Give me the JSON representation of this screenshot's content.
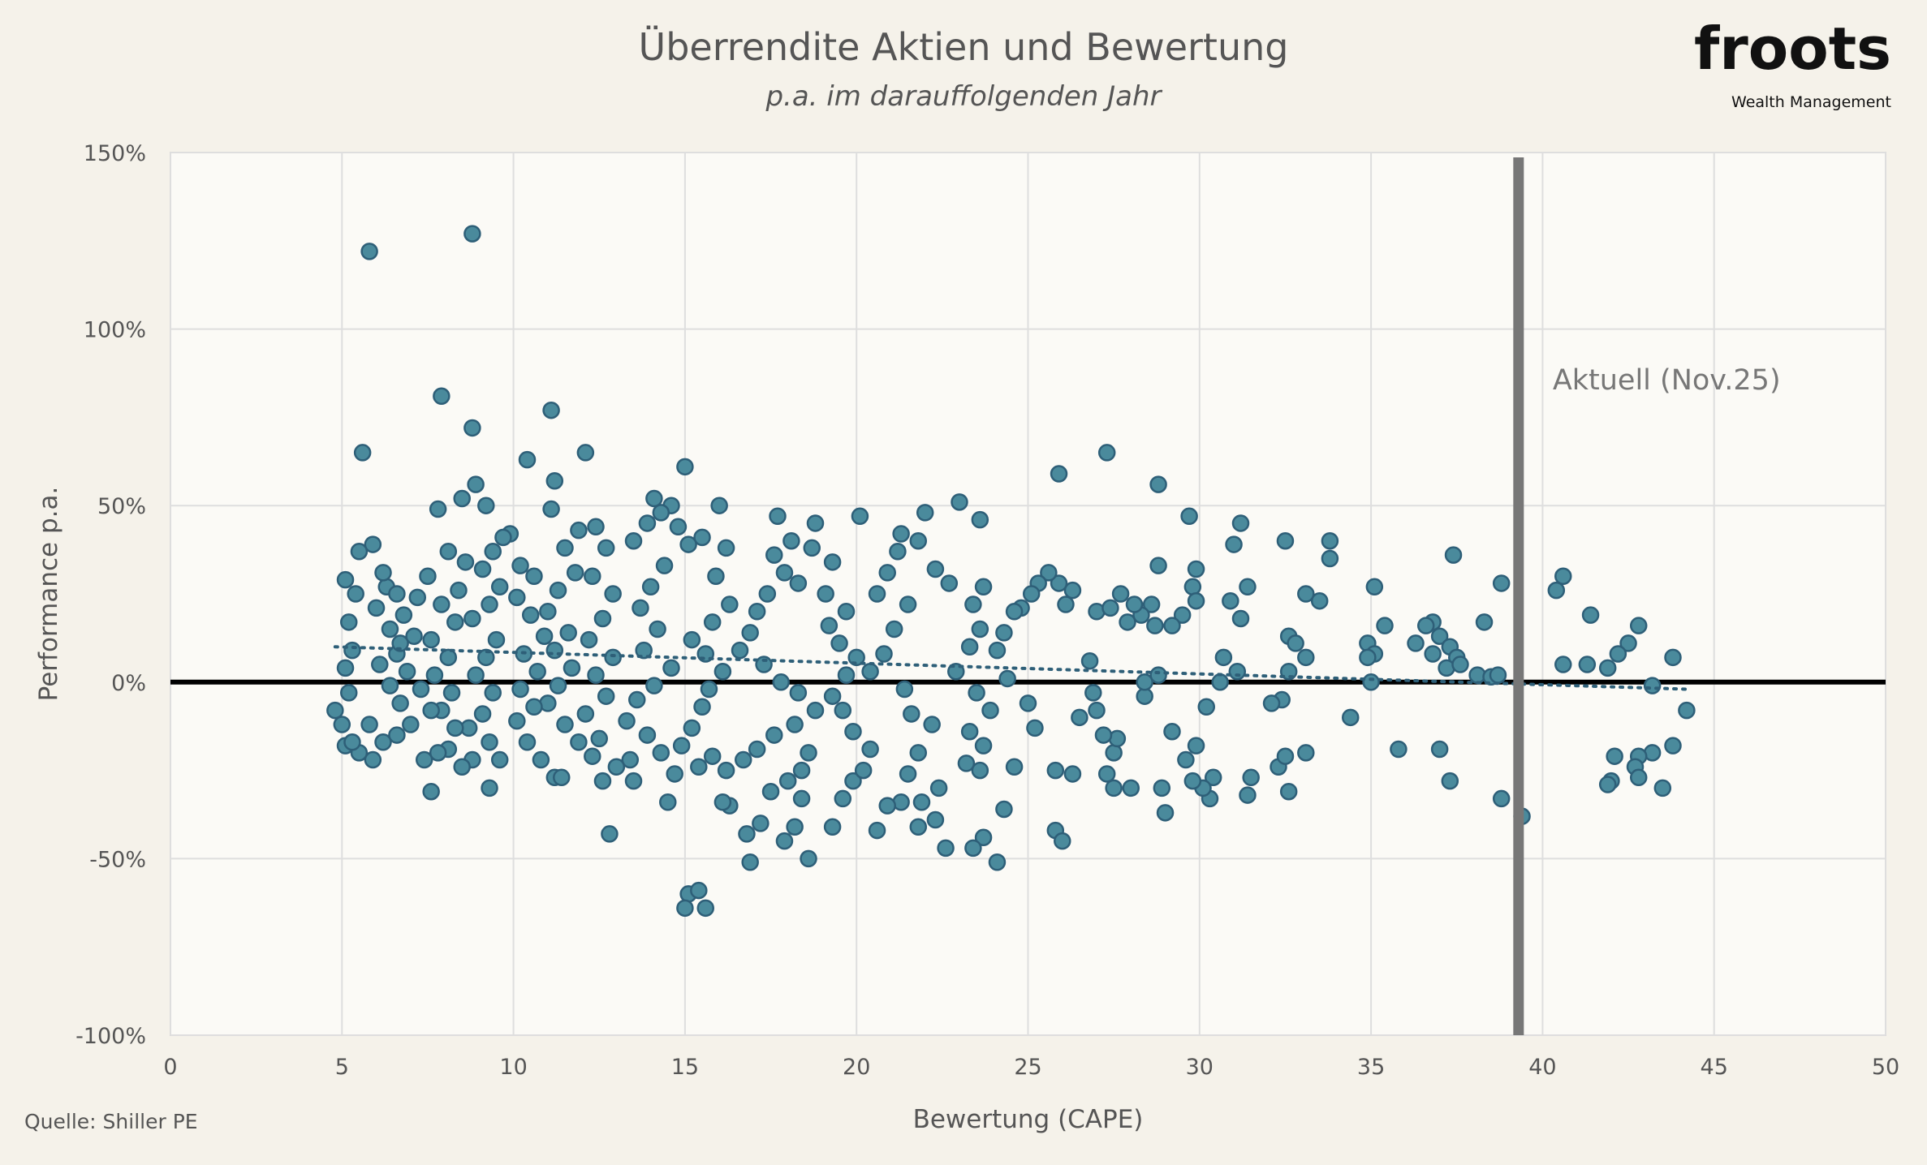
{
  "title": "Überrendite Aktien und Bewertung",
  "subtitle": "p.a. im darauffolgenden Jahr",
  "logo": {
    "name": "froots",
    "tagline": "Wealth Management"
  },
  "source": "Quelle: Shiller PE",
  "chart_data": {
    "type": "scatter",
    "xlabel": "Bewertung (CAPE)",
    "ylabel": "Performance p.a.",
    "xlim": [
      0,
      50
    ],
    "ylim": [
      -100,
      150
    ],
    "x_ticks": [
      "0",
      "5",
      "10",
      "15",
      "20",
      "25",
      "30",
      "35",
      "40",
      "45",
      "50"
    ],
    "y_ticks": [
      "150%",
      "100%",
      "50%",
      "0%",
      "-50%",
      "-100%"
    ],
    "grid": true,
    "colors": {
      "point": "#4a8a9c",
      "point_edge": "#2e5f78",
      "zero_line": "#000000",
      "marker_line": "#777777",
      "trend": "#2e5f78",
      "background": "#f5f2ea",
      "plot_bg": "#fbfaf6"
    },
    "marker": {
      "x": 39.3,
      "label": "Aktuell (Nov.25)"
    },
    "trendline": {
      "style": "dotted",
      "from": [
        4.8,
        10
      ],
      "to": [
        44.2,
        -2
      ]
    },
    "points": [
      [
        5.8,
        122
      ],
      [
        8.8,
        127
      ],
      [
        7.9,
        81
      ],
      [
        11.1,
        77
      ],
      [
        8.8,
        72
      ],
      [
        5.6,
        65
      ],
      [
        12.1,
        65
      ],
      [
        27.3,
        65
      ],
      [
        10.4,
        63
      ],
      [
        15,
        61
      ],
      [
        25.9,
        59
      ],
      [
        28.8,
        56
      ],
      [
        11.2,
        57
      ],
      [
        8.9,
        56
      ],
      [
        8.5,
        52
      ],
      [
        14.1,
        52
      ],
      [
        23,
        51
      ],
      [
        9.2,
        50
      ],
      [
        16,
        50
      ],
      [
        14.6,
        50
      ],
      [
        11.1,
        49
      ],
      [
        7.8,
        49
      ],
      [
        22,
        48
      ],
      [
        29.7,
        47
      ],
      [
        17.7,
        47
      ],
      [
        20.1,
        47
      ],
      [
        23.6,
        46
      ],
      [
        31.2,
        45
      ],
      [
        18.8,
        45
      ],
      [
        5.9,
        39
      ],
      [
        5.5,
        37
      ],
      [
        32.5,
        40
      ],
      [
        33.8,
        40
      ],
      [
        31,
        39
      ],
      [
        37.4,
        36
      ],
      [
        33.8,
        35
      ],
      [
        35.1,
        27
      ],
      [
        38.8,
        28
      ],
      [
        40.6,
        30
      ],
      [
        40.4,
        26
      ],
      [
        41.4,
        19
      ],
      [
        42.8,
        16
      ],
      [
        42.5,
        11
      ],
      [
        43.8,
        7
      ],
      [
        42.2,
        8
      ],
      [
        41.9,
        4
      ],
      [
        40.6,
        5
      ],
      [
        41.3,
        5
      ],
      [
        43.2,
        -1
      ],
      [
        44.2,
        -8
      ],
      [
        43.8,
        -18
      ],
      [
        43.2,
        -20
      ],
      [
        42.1,
        -21
      ],
      [
        42.8,
        -21
      ],
      [
        42.7,
        -24
      ],
      [
        42.8,
        -27
      ],
      [
        42,
        -28
      ],
      [
        41.9,
        -29
      ],
      [
        43.5,
        -30
      ],
      [
        39.4,
        -38
      ],
      [
        38.8,
        -33
      ],
      [
        37.3,
        -28
      ],
      [
        37,
        -19
      ],
      [
        35.8,
        -19
      ],
      [
        36.8,
        17
      ],
      [
        36.6,
        16
      ],
      [
        37,
        13
      ],
      [
        37.3,
        10
      ],
      [
        36.3,
        11
      ],
      [
        37.5,
        7
      ],
      [
        37.2,
        4
      ],
      [
        38.1,
        2
      ],
      [
        38.5,
        1.5
      ],
      [
        38.7,
        2
      ],
      [
        38.3,
        17
      ],
      [
        36.8,
        8
      ],
      [
        37.6,
        5
      ],
      [
        35.4,
        16
      ],
      [
        34.9,
        11
      ],
      [
        35.1,
        8
      ],
      [
        34.9,
        7
      ],
      [
        35,
        0
      ],
      [
        34.4,
        -10
      ],
      [
        33.5,
        23
      ],
      [
        33.1,
        25
      ],
      [
        32.6,
        13
      ],
      [
        32.8,
        11
      ],
      [
        32.6,
        3
      ],
      [
        33.1,
        7
      ],
      [
        32.4,
        -5
      ],
      [
        32.1,
        -6
      ],
      [
        33.1,
        -20
      ],
      [
        32.6,
        -31
      ],
      [
        31.4,
        -32
      ],
      [
        31.5,
        -27
      ],
      [
        32.3,
        -24
      ],
      [
        32.5,
        -21
      ],
      [
        31.2,
        18
      ],
      [
        31.4,
        27
      ],
      [
        30.9,
        23
      ],
      [
        30.7,
        7
      ],
      [
        31.1,
        3
      ],
      [
        30.6,
        0
      ],
      [
        30.2,
        -7
      ],
      [
        30.4,
        -27
      ],
      [
        30.3,
        -33
      ],
      [
        30.1,
        -30
      ],
      [
        29.8,
        -28
      ],
      [
        29.9,
        -18
      ],
      [
        29,
        -37
      ],
      [
        28.9,
        -30
      ],
      [
        29.2,
        -14
      ],
      [
        29.6,
        -22
      ],
      [
        29.9,
        32
      ],
      [
        29.8,
        27
      ],
      [
        29.5,
        19
      ],
      [
        29.9,
        23
      ],
      [
        29.2,
        16
      ],
      [
        28.8,
        33
      ],
      [
        28.6,
        22
      ],
      [
        28.3,
        19
      ],
      [
        27.9,
        17
      ],
      [
        28.1,
        22
      ],
      [
        28.7,
        16
      ],
      [
        28.8,
        2
      ],
      [
        28.4,
        -4
      ],
      [
        28.4,
        0
      ],
      [
        28,
        -30
      ],
      [
        27.5,
        -30
      ],
      [
        27.3,
        -26
      ],
      [
        27.5,
        -20
      ],
      [
        27.6,
        -16
      ],
      [
        27.2,
        -15
      ],
      [
        27,
        -8
      ],
      [
        26.9,
        -3
      ],
      [
        26.5,
        -10
      ],
      [
        26.8,
        6
      ],
      [
        27,
        20
      ],
      [
        27.4,
        21
      ],
      [
        27.7,
        25
      ],
      [
        26.3,
        26
      ],
      [
        26.1,
        22
      ],
      [
        25.9,
        28
      ],
      [
        25.6,
        31
      ],
      [
        25.3,
        28
      ],
      [
        25.1,
        25
      ],
      [
        24.8,
        21
      ],
      [
        24.6,
        20
      ],
      [
        24.3,
        14
      ],
      [
        24.1,
        9
      ],
      [
        24.4,
        1
      ],
      [
        25,
        -6
      ],
      [
        25.2,
        -13
      ],
      [
        25.8,
        -25
      ],
      [
        26.3,
        -26
      ],
      [
        25.8,
        -42
      ],
      [
        26,
        -45
      ],
      [
        24.3,
        -36
      ],
      [
        24.6,
        -24
      ],
      [
        24.1,
        -51
      ],
      [
        23.7,
        -44
      ],
      [
        23.4,
        -47
      ],
      [
        22.6,
        -47
      ],
      [
        23.6,
        -25
      ],
      [
        23.2,
        -23
      ],
      [
        23.7,
        -18
      ],
      [
        23.3,
        -14
      ],
      [
        23.9,
        -8
      ],
      [
        23.5,
        -3
      ],
      [
        22.9,
        3
      ],
      [
        23.3,
        10
      ],
      [
        23.6,
        15
      ],
      [
        23.4,
        22
      ],
      [
        23.7,
        27
      ],
      [
        22.7,
        28
      ],
      [
        22.3,
        32
      ],
      [
        21.8,
        40
      ],
      [
        21.3,
        42
      ],
      [
        21.2,
        37
      ],
      [
        20.9,
        31
      ],
      [
        20.6,
        25
      ],
      [
        21.5,
        22
      ],
      [
        21.1,
        15
      ],
      [
        20.8,
        8
      ],
      [
        20.4,
        3
      ],
      [
        21.4,
        -2
      ],
      [
        21.6,
        -9
      ],
      [
        22.2,
        -12
      ],
      [
        21.8,
        -20
      ],
      [
        21.5,
        -26
      ],
      [
        22.4,
        -30
      ],
      [
        21.9,
        -34
      ],
      [
        21.3,
        -34
      ],
      [
        20.9,
        -35
      ],
      [
        22.3,
        -39
      ],
      [
        21.8,
        -41
      ],
      [
        20.6,
        -42
      ],
      [
        19.3,
        -41
      ],
      [
        19.6,
        -33
      ],
      [
        19.9,
        -28
      ],
      [
        20.2,
        -25
      ],
      [
        20.4,
        -19
      ],
      [
        19.9,
        -14
      ],
      [
        19.6,
        -8
      ],
      [
        19.3,
        -4
      ],
      [
        19.7,
        2
      ],
      [
        20,
        7
      ],
      [
        19.5,
        11
      ],
      [
        19.2,
        16
      ],
      [
        19.7,
        20
      ],
      [
        19.1,
        25
      ],
      [
        19.3,
        34
      ],
      [
        18.7,
        38
      ],
      [
        18.1,
        40
      ],
      [
        17.6,
        36
      ],
      [
        17.9,
        31
      ],
      [
        18.3,
        28
      ],
      [
        17.4,
        25
      ],
      [
        17.1,
        20
      ],
      [
        16.9,
        14
      ],
      [
        16.6,
        9
      ],
      [
        17.3,
        5
      ],
      [
        17.8,
        0
      ],
      [
        18.3,
        -3
      ],
      [
        18.8,
        -8
      ],
      [
        18.2,
        -12
      ],
      [
        17.6,
        -15
      ],
      [
        17.1,
        -19
      ],
      [
        16.7,
        -22
      ],
      [
        18.6,
        -20
      ],
      [
        18.4,
        -25
      ],
      [
        18,
        -28
      ],
      [
        18.4,
        -33
      ],
      [
        17.5,
        -31
      ],
      [
        18.2,
        -41
      ],
      [
        17.9,
        -45
      ],
      [
        18.6,
        -50
      ],
      [
        16.9,
        -51
      ],
      [
        16.8,
        -43
      ],
      [
        17.2,
        -40
      ],
      [
        16.3,
        -35
      ],
      [
        16.1,
        -34
      ],
      [
        16.2,
        -25
      ],
      [
        15.8,
        -21
      ],
      [
        15.4,
        -24
      ],
      [
        15.1,
        -60
      ],
      [
        15.4,
        -59
      ],
      [
        15,
        -64
      ],
      [
        15.6,
        -64
      ],
      [
        14.5,
        -34
      ],
      [
        14.7,
        -26
      ],
      [
        14.9,
        -18
      ],
      [
        15.2,
        -13
      ],
      [
        15.5,
        -7
      ],
      [
        15.7,
        -2
      ],
      [
        16.1,
        3
      ],
      [
        15.6,
        8
      ],
      [
        15.2,
        12
      ],
      [
        15.8,
        17
      ],
      [
        16.3,
        22
      ],
      [
        15.9,
        30
      ],
      [
        16.2,
        38
      ],
      [
        15.5,
        41
      ],
      [
        15.1,
        39
      ],
      [
        14.8,
        44
      ],
      [
        14.3,
        48
      ],
      [
        13.9,
        45
      ],
      [
        13.5,
        40
      ],
      [
        14.4,
        33
      ],
      [
        14,
        27
      ],
      [
        13.7,
        21
      ],
      [
        14.2,
        15
      ],
      [
        13.8,
        9
      ],
      [
        14.6,
        4
      ],
      [
        14.1,
        -1
      ],
      [
        13.6,
        -5
      ],
      [
        13.3,
        -11
      ],
      [
        13.9,
        -15
      ],
      [
        14.3,
        -20
      ],
      [
        13.4,
        -22
      ],
      [
        13,
        -24
      ],
      [
        12.6,
        -28
      ],
      [
        13.5,
        -28
      ],
      [
        12.8,
        -43
      ],
      [
        12.3,
        -21
      ],
      [
        12.5,
        -16
      ],
      [
        12.1,
        -9
      ],
      [
        12.7,
        -4
      ],
      [
        12.4,
        2
      ],
      [
        12.9,
        7
      ],
      [
        12.2,
        12
      ],
      [
        12.6,
        18
      ],
      [
        12.9,
        25
      ],
      [
        12.3,
        30
      ],
      [
        12.7,
        38
      ],
      [
        12.4,
        44
      ],
      [
        11.9,
        43
      ],
      [
        11.5,
        38
      ],
      [
        11.8,
        31
      ],
      [
        11.3,
        26
      ],
      [
        11,
        20
      ],
      [
        11.6,
        14
      ],
      [
        11.2,
        9
      ],
      [
        11.7,
        4
      ],
      [
        11.3,
        -1
      ],
      [
        11,
        -6
      ],
      [
        11.5,
        -12
      ],
      [
        11.9,
        -17
      ],
      [
        11.2,
        -27
      ],
      [
        11.4,
        -27
      ],
      [
        10.8,
        -22
      ],
      [
        10.4,
        -17
      ],
      [
        10.1,
        -11
      ],
      [
        10.6,
        -7
      ],
      [
        10.2,
        -2
      ],
      [
        10.7,
        3
      ],
      [
        10.3,
        8
      ],
      [
        10.9,
        13
      ],
      [
        10.5,
        19
      ],
      [
        10.1,
        24
      ],
      [
        10.6,
        30
      ],
      [
        10.2,
        33
      ],
      [
        9.9,
        42
      ],
      [
        9.7,
        41
      ],
      [
        9.4,
        37
      ],
      [
        9.1,
        32
      ],
      [
        9.6,
        27
      ],
      [
        9.3,
        22
      ],
      [
        8.8,
        18
      ],
      [
        9.5,
        12
      ],
      [
        9.2,
        7
      ],
      [
        8.9,
        2
      ],
      [
        9.4,
        -3
      ],
      [
        9.1,
        -9
      ],
      [
        8.7,
        -13
      ],
      [
        9.3,
        -17
      ],
      [
        9.6,
        -22
      ],
      [
        9.3,
        -30
      ],
      [
        8.8,
        -22
      ],
      [
        8.5,
        -24
      ],
      [
        8.1,
        -19
      ],
      [
        7.8,
        -20
      ],
      [
        8.3,
        -13
      ],
      [
        7.9,
        -8
      ],
      [
        8.2,
        -3
      ],
      [
        7.7,
        2
      ],
      [
        8.1,
        7
      ],
      [
        7.6,
        12
      ],
      [
        8.3,
        17
      ],
      [
        7.9,
        22
      ],
      [
        8.4,
        26
      ],
      [
        8.6,
        34
      ],
      [
        8.1,
        37
      ],
      [
        7.5,
        30
      ],
      [
        7.2,
        24
      ],
      [
        6.8,
        19
      ],
      [
        7.1,
        13
      ],
      [
        6.6,
        8
      ],
      [
        6.9,
        3
      ],
      [
        7.3,
        -2
      ],
      [
        7.6,
        -8
      ],
      [
        7,
        -12
      ],
      [
        6.6,
        -15
      ],
      [
        7.4,
        -22
      ],
      [
        7.6,
        -31
      ],
      [
        6.2,
        -17
      ],
      [
        5.9,
        -22
      ],
      [
        5.5,
        -20
      ],
      [
        5.1,
        -18
      ],
      [
        5.3,
        -17
      ],
      [
        4.8,
        -8
      ],
      [
        5,
        -12
      ],
      [
        5.2,
        -3
      ],
      [
        5.1,
        4
      ],
      [
        5.3,
        9
      ],
      [
        5.2,
        17
      ],
      [
        5.4,
        25
      ],
      [
        5.1,
        29
      ],
      [
        6,
        21
      ],
      [
        6.3,
        27
      ],
      [
        6.2,
        31
      ],
      [
        6.6,
        25
      ],
      [
        6.4,
        15
      ],
      [
        6.7,
        11
      ],
      [
        6.1,
        5
      ],
      [
        6.4,
        -1
      ],
      [
        6.7,
        -6
      ],
      [
        5.8,
        -12
      ]
    ]
  }
}
